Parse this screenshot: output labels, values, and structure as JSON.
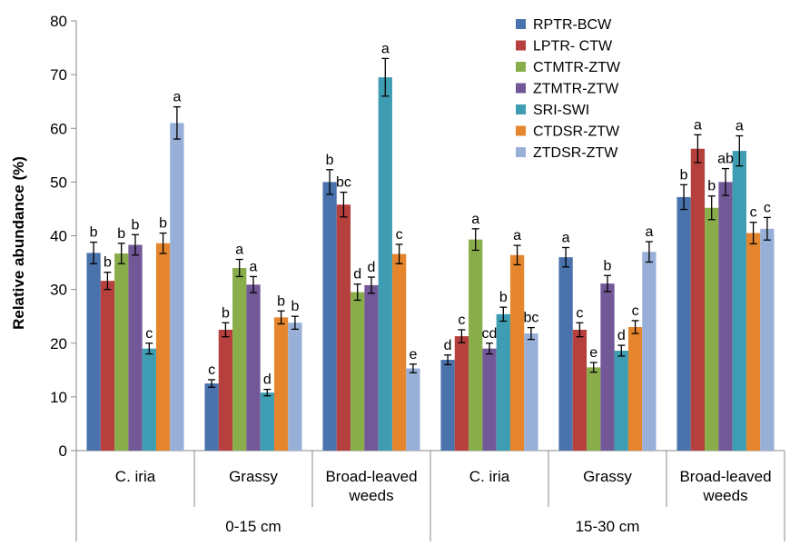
{
  "chart_data": {
    "type": "bar",
    "title": "",
    "ylabel": "Relative abundance (%)",
    "xlabel": "",
    "ylim": [
      0,
      80
    ],
    "yticks": [
      0,
      10,
      20,
      30,
      40,
      50,
      60,
      70,
      80
    ],
    "grid": false,
    "legend_position": "top-right",
    "groups": [
      {
        "label": "0-15 cm",
        "categories": [
          "C. iria",
          "Grassy",
          "Broad-leaved weeds"
        ]
      },
      {
        "label": "15-30 cm",
        "categories": [
          "C. iria",
          "Grassy",
          "Broad-leaved weeds"
        ]
      }
    ],
    "categories": [
      "C. iria",
      "Grassy",
      "Broad-leaved weeds",
      "C. iria",
      "Grassy",
      "Broad-leaved weeds"
    ],
    "series": [
      {
        "name": "RPTR-BCW",
        "color": "#4A72AC",
        "values": [
          36.8,
          12.5,
          50.0,
          16.9,
          36.0,
          47.2
        ],
        "errors": [
          2.0,
          0.7,
          2.3,
          0.9,
          1.8,
          2.3
        ],
        "letters": [
          "b",
          "c",
          "b",
          "d",
          "a",
          "b"
        ]
      },
      {
        "name": "LPTR- CTW",
        "color": "#B5403D",
        "values": [
          31.6,
          22.5,
          45.8,
          21.3,
          22.5,
          56.2
        ],
        "errors": [
          1.6,
          1.3,
          2.3,
          1.2,
          1.3,
          2.6
        ],
        "letters": [
          "b",
          "b",
          "bc",
          "c",
          "c",
          "a"
        ]
      },
      {
        "name": "CTMTR-ZTW",
        "color": "#8AAD4C",
        "values": [
          36.7,
          34.0,
          29.5,
          39.3,
          15.5,
          45.2
        ],
        "errors": [
          1.9,
          1.6,
          1.5,
          2.0,
          0.9,
          2.2
        ],
        "letters": [
          "b",
          "a",
          "d",
          "a",
          "e",
          "b"
        ]
      },
      {
        "name": "ZTMTR-ZTW",
        "color": "#735898",
        "values": [
          38.3,
          30.9,
          30.8,
          19.0,
          31.1,
          50.0
        ],
        "errors": [
          1.9,
          1.5,
          1.5,
          1.0,
          1.5,
          2.5
        ],
        "letters": [
          "b",
          "a",
          "d",
          "cd",
          "b",
          "ab"
        ]
      },
      {
        "name": "SRI-SWI",
        "color": "#3E9DB2",
        "values": [
          19.0,
          10.8,
          69.5,
          25.4,
          18.6,
          55.8
        ],
        "errors": [
          1.0,
          0.6,
          3.5,
          1.3,
          1.0,
          2.8
        ],
        "letters": [
          "c",
          "d",
          "a",
          "b",
          "d",
          "a"
        ]
      },
      {
        "name": "CTDSR-ZTW",
        "color": "#E5862E",
        "values": [
          38.6,
          24.8,
          36.6,
          36.4,
          23.0,
          40.5
        ],
        "errors": [
          1.9,
          1.2,
          1.8,
          1.8,
          1.2,
          2.0
        ],
        "letters": [
          "b",
          "b",
          "c",
          "a",
          "c",
          "c"
        ]
      },
      {
        "name": "ZTDSR-ZTW",
        "color": "#98B0D8",
        "values": [
          61.0,
          23.8,
          15.3,
          21.8,
          37.0,
          41.3
        ],
        "errors": [
          3.0,
          1.2,
          0.8,
          1.1,
          1.9,
          2.1
        ],
        "letters": [
          "a",
          "b",
          "e",
          "bc",
          "a",
          "c"
        ]
      }
    ]
  }
}
